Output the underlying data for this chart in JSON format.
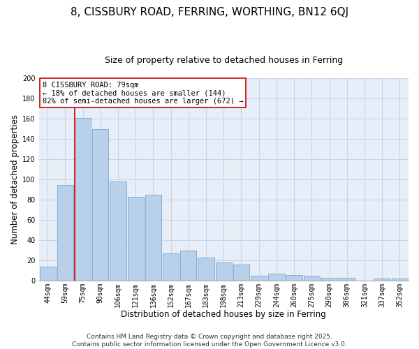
{
  "title": "8, CISSBURY ROAD, FERRING, WORTHING, BN12 6QJ",
  "subtitle": "Size of property relative to detached houses in Ferring",
  "xlabel": "Distribution of detached houses by size in Ferring",
  "ylabel": "Number of detached properties",
  "categories": [
    "44sqm",
    "59sqm",
    "75sqm",
    "90sqm",
    "106sqm",
    "121sqm",
    "136sqm",
    "152sqm",
    "167sqm",
    "183sqm",
    "198sqm",
    "213sqm",
    "229sqm",
    "244sqm",
    "260sqm",
    "275sqm",
    "290sqm",
    "306sqm",
    "321sqm",
    "337sqm",
    "352sqm"
  ],
  "values": [
    14,
    95,
    161,
    150,
    98,
    83,
    85,
    27,
    30,
    23,
    18,
    16,
    5,
    7,
    6,
    5,
    3,
    3,
    0,
    2,
    2
  ],
  "bar_color": "#b8d0ea",
  "bar_edge_color": "#7aa8d0",
  "vline_x_index": 2,
  "vline_color": "#cc0000",
  "ylim": [
    0,
    200
  ],
  "yticks": [
    0,
    20,
    40,
    60,
    80,
    100,
    120,
    140,
    160,
    180,
    200
  ],
  "annotation_line1": "8 CISSBURY ROAD: 79sqm",
  "annotation_line2": "← 18% of detached houses are smaller (144)",
  "annotation_line3": "82% of semi-detached houses are larger (672) →",
  "annotation_box_color": "#ffffff",
  "annotation_box_edge": "#cc0000",
  "bg_color": "#e8eef8",
  "grid_color": "#c8d4e8",
  "footer_line1": "Contains HM Land Registry data © Crown copyright and database right 2025.",
  "footer_line2": "Contains public sector information licensed under the Open Government Licence v3.0.",
  "title_fontsize": 11,
  "subtitle_fontsize": 9,
  "axis_label_fontsize": 8.5,
  "tick_fontsize": 7,
  "annotation_fontsize": 7.5,
  "footer_fontsize": 6.5
}
